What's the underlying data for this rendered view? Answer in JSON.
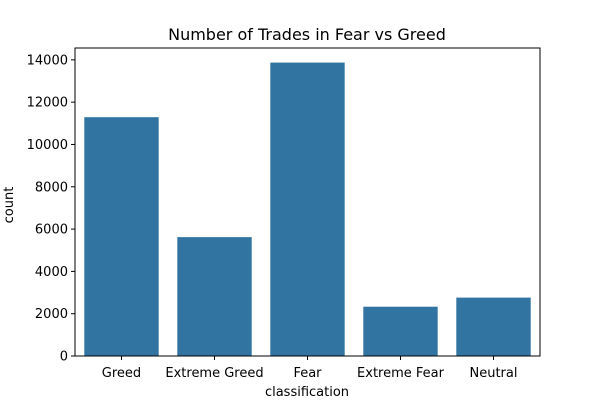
{
  "chart_data": {
    "type": "bar",
    "title": "Number of Trades in Fear vs Greed",
    "xlabel": "classification",
    "ylabel": "count",
    "categories": [
      "Greed",
      "Extreme Greed",
      "Fear",
      "Extreme Fear",
      "Neutral"
    ],
    "values": [
      11290,
      5620,
      13870,
      2330,
      2760
    ],
    "ylim": [
      0,
      14560
    ],
    "yticks": [
      0,
      2000,
      4000,
      6000,
      8000,
      10000,
      12000,
      14000
    ],
    "ytick_labels": [
      "0",
      "2000",
      "4000",
      "6000",
      "8000",
      "10000",
      "12000",
      "14000"
    ],
    "grid": false,
    "legend": "none",
    "bar_color": "#3274a1"
  }
}
